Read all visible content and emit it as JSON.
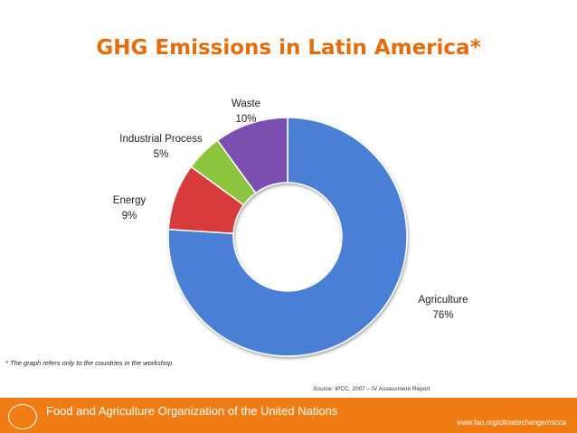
{
  "title": "GHG Emissions in Latin America*",
  "chart_data": {
    "type": "pie",
    "variant": "donut",
    "categories": [
      "Agriculture",
      "Energy",
      "Industrial Process",
      "Waste"
    ],
    "values": [
      76,
      9,
      5,
      10
    ],
    "labels": [
      {
        "name": "Agriculture",
        "percent": "76%"
      },
      {
        "name": "Energy",
        "percent": "9%"
      },
      {
        "name": "Industrial Process",
        "percent": "5%"
      },
      {
        "name": "Waste",
        "percent": "10%"
      }
    ],
    "colors": [
      "#4a7fd4",
      "#d83a3a",
      "#8cc43c",
      "#7a4fb0"
    ],
    "start": "12 o'clock",
    "direction": "clockwise",
    "legend": "none"
  },
  "footnote": "* The graph refers only to the countries in the workshop",
  "source": {
    "prefix": "Source:",
    "text": "IPCC, 2007 – IV Assessment Report"
  },
  "footer": {
    "organization": "Food and Agriculture Organization of the United Nations",
    "url": "www.fao.org/climatechange/micca",
    "brand_color": "#ef7d14"
  }
}
